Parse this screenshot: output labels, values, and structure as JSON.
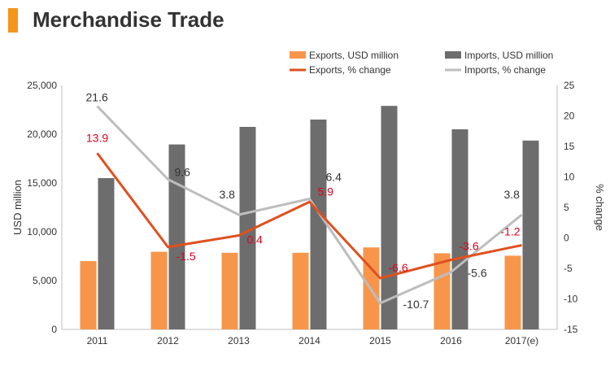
{
  "page": {
    "title": "Merchandise Trade",
    "accent": "#F7941D"
  },
  "chart_data": {
    "type": "bar+line",
    "categories": [
      "2011",
      "2012",
      "2013",
      "2014",
      "2015",
      "2016",
      "2017(e)"
    ],
    "ylabel_left": "USD million",
    "ylabel_right": "% change",
    "ylim_left": [
      0,
      25000
    ],
    "ylim_right": [
      -15,
      25
    ],
    "ticks_left": [
      "0",
      "5,000",
      "10,000",
      "15,000",
      "20,000",
      "25,000"
    ],
    "ticks_right": [
      "-15",
      "-10",
      "-5",
      "0",
      "5",
      "10",
      "15",
      "20",
      "25"
    ],
    "bars": [
      {
        "name": "Exports, USD million",
        "color": "#F7964A",
        "values": [
          7000,
          7950,
          7850,
          7850,
          8400,
          7800,
          7550
        ]
      },
      {
        "name": "Imports, USD million",
        "color": "#6D6D6D",
        "values": [
          15500,
          18950,
          20750,
          21500,
          22900,
          20500,
          19350
        ]
      }
    ],
    "lines": [
      {
        "name": "Exports, % change",
        "color": "#E0501F",
        "values": [
          13.9,
          -1.5,
          0.4,
          5.9,
          -6.6,
          -3.6,
          -1.2
        ],
        "labels": [
          "13.9",
          "-1.5",
          "0.4",
          "5.9",
          "-6.6",
          "-3.6",
          "-1.2"
        ],
        "label_color": "#E3001B"
      },
      {
        "name": "Imports, % change",
        "color": "#BDBDBD",
        "values": [
          21.6,
          9.6,
          3.8,
          6.4,
          -10.7,
          -5.6,
          3.8
        ],
        "labels": [
          "21.6",
          "9.6",
          "3.8",
          "6.4",
          "-10.7",
          "-5.6",
          "3.8"
        ],
        "label_color": "#333333"
      }
    ],
    "legend_position": "top-right",
    "grid": false
  }
}
